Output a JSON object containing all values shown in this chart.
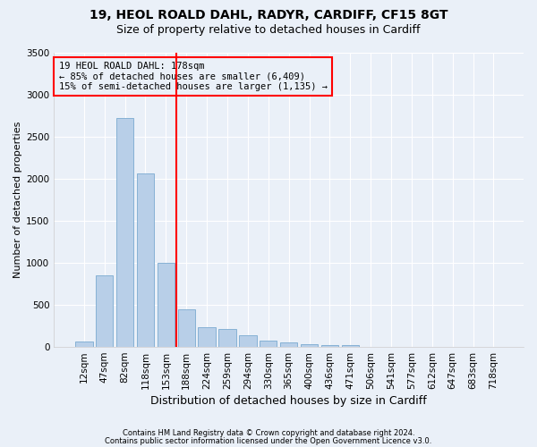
{
  "title_line1": "19, HEOL ROALD DAHL, RADYR, CARDIFF, CF15 8GT",
  "title_line2": "Size of property relative to detached houses in Cardiff",
  "xlabel": "Distribution of detached houses by size in Cardiff",
  "ylabel": "Number of detached properties",
  "footnote1": "Contains HM Land Registry data © Crown copyright and database right 2024.",
  "footnote2": "Contains public sector information licensed under the Open Government Licence v3.0.",
  "bin_labels": [
    "12sqm",
    "47sqm",
    "82sqm",
    "118sqm",
    "153sqm",
    "188sqm",
    "224sqm",
    "259sqm",
    "294sqm",
    "330sqm",
    "365sqm",
    "400sqm",
    "436sqm",
    "471sqm",
    "506sqm",
    "541sqm",
    "577sqm",
    "612sqm",
    "647sqm",
    "683sqm",
    "718sqm"
  ],
  "bar_heights": [
    60,
    850,
    2720,
    2060,
    1000,
    450,
    230,
    215,
    135,
    70,
    55,
    35,
    25,
    20,
    5,
    3,
    2,
    1,
    0,
    0,
    0
  ],
  "bar_color": "#b8cfe8",
  "bar_edgecolor": "#7aaad0",
  "vline_index": 5,
  "vline_color": "red",
  "ylim": [
    0,
    3500
  ],
  "yticks": [
    0,
    500,
    1000,
    1500,
    2000,
    2500,
    3000,
    3500
  ],
  "annotation_line1": "19 HEOL ROALD DAHL: 178sqm",
  "annotation_line2": "← 85% of detached houses are smaller (6,409)",
  "annotation_line3": "15% of semi-detached houses are larger (1,135) →",
  "annotation_box_edgecolor": "red",
  "bg_color": "#eaf0f8",
  "grid_color": "white",
  "title1_fontsize": 10,
  "title2_fontsize": 9,
  "xlabel_fontsize": 9,
  "ylabel_fontsize": 8,
  "tick_fontsize": 7.5,
  "annot_fontsize": 7.5
}
